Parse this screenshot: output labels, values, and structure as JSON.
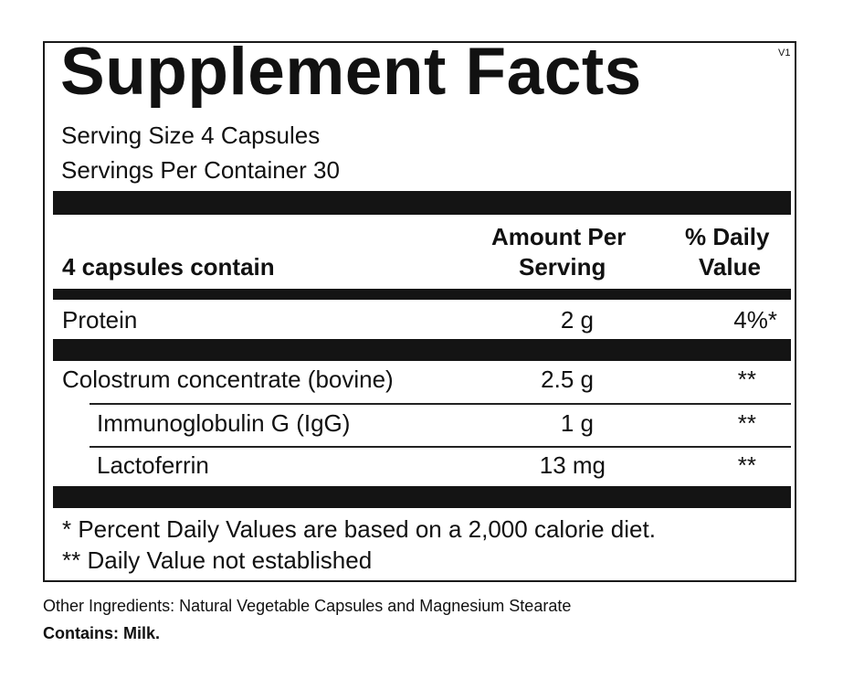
{
  "label": {
    "title": "Supplement Facts",
    "version": "V1",
    "serving_size": "Serving Size 4 Capsules",
    "servings_per_container": "Servings Per Container  30",
    "header": {
      "contains": "4 capsules contain",
      "amount_line1": "Amount Per",
      "amount_line2": "Serving",
      "dv_line1": "% Daily",
      "dv_line2": "Value"
    },
    "rows": [
      {
        "name": "Protein",
        "amount": "2 g",
        "dv": "4%*"
      },
      {
        "name": "Colostrum concentrate (bovine)",
        "amount": "2.5 g",
        "dv": "**"
      },
      {
        "name": "Immunoglobulin G (IgG)",
        "amount": "1 g",
        "dv": "**"
      },
      {
        "name": "Lactoferrin",
        "amount": "13 mg",
        "dv": "**"
      }
    ],
    "footnotes": [
      "* Percent Daily Values are based on a 2,000 calorie diet.",
      "** Daily Value not established"
    ]
  },
  "other_ingredients": "Other Ingredients: Natural Vegetable Capsules and Magnesium Stearate",
  "contains_allergen": "Contains: Milk."
}
